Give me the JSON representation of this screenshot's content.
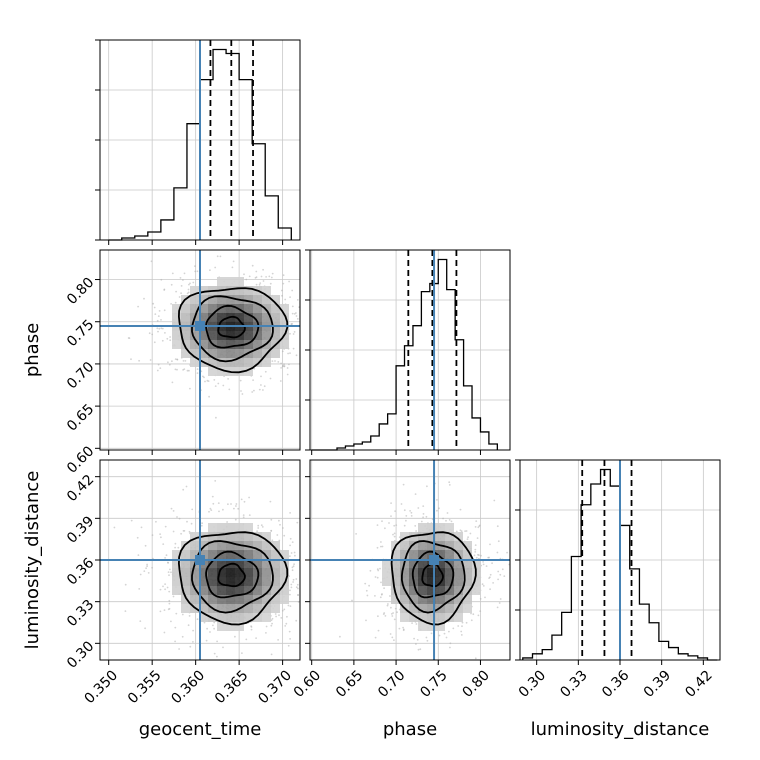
{
  "chart_data": {
    "type": "corner",
    "title": "",
    "parameters": [
      "geocent_time",
      "phase",
      "luminosity_distance"
    ],
    "truths": {
      "geocent_time": 0.3605,
      "phase": 0.745,
      "luminosity_distance": 0.36
    },
    "truth_color": "#4682b4",
    "grid": true,
    "axes": {
      "geocent_time": {
        "label": "geocent_time",
        "range": [
          0.349,
          0.372
        ],
        "ticks": [
          0.35,
          0.355,
          0.36,
          0.365,
          0.37
        ],
        "tick_labels": [
          "0.350",
          "0.355",
          "0.360",
          "0.365",
          "0.370"
        ],
        "quantiles": [
          0.3617,
          0.3641,
          0.3666
        ],
        "hist_bins": [
          0.35,
          0.3515,
          0.353,
          0.3545,
          0.356,
          0.3575,
          0.359,
          0.3605,
          0.362,
          0.3635,
          0.365,
          0.3665,
          0.368,
          0.3695,
          0.371
        ],
        "hist_counts": [
          0,
          1,
          2,
          4,
          10,
          26,
          58,
          80,
          95,
          93,
          80,
          48,
          22,
          6
        ]
      },
      "phase": {
        "label": "phase",
        "range": [
          0.598,
          0.835
        ],
        "ticks": [
          0.6,
          0.65,
          0.7,
          0.75,
          0.8
        ],
        "tick_labels": [
          "0.60",
          "0.65",
          "0.70",
          "0.75",
          "0.80"
        ],
        "quantiles": [
          0.7145,
          0.743,
          0.7715
        ],
        "hist_bins": [
          0.6,
          0.61,
          0.62,
          0.63,
          0.64,
          0.65,
          0.66,
          0.67,
          0.68,
          0.69,
          0.7,
          0.71,
          0.72,
          0.73,
          0.74,
          0.75,
          0.76,
          0.77,
          0.78,
          0.79,
          0.8,
          0.81,
          0.82
        ],
        "hist_counts": [
          0,
          0,
          0,
          1,
          2,
          3,
          4,
          7,
          13,
          18,
          42,
          52,
          62,
          79,
          83,
          95,
          80,
          55,
          32,
          16,
          9,
          3
        ]
      },
      "luminosity_distance": {
        "label": "luminosity_distance",
        "range": [
          0.288,
          0.432
        ],
        "ticks": [
          0.3,
          0.33,
          0.36,
          0.39,
          0.42
        ],
        "tick_labels": [
          "0.30",
          "0.33",
          "0.36",
          "0.39",
          "0.42"
        ],
        "quantiles": [
          0.3328,
          0.3488,
          0.3683
        ],
        "hist_bins": [
          0.29,
          0.297,
          0.304,
          0.311,
          0.318,
          0.325,
          0.332,
          0.339,
          0.346,
          0.353,
          0.36,
          0.367,
          0.374,
          0.381,
          0.388,
          0.395,
          0.402,
          0.409,
          0.416,
          0.423,
          0.43
        ],
        "hist_counts": [
          1,
          3,
          5,
          12,
          23,
          50,
          75,
          85,
          92,
          84,
          65,
          44,
          27,
          18,
          9,
          6,
          3,
          2,
          1,
          0
        ]
      }
    },
    "pair_stats": [
      {
        "x": "geocent_time",
        "y": "phase",
        "mean": [
          0.3641,
          0.743
        ],
        "sd": [
          0.003,
          0.024
        ],
        "corr": -0.05
      },
      {
        "x": "geocent_time",
        "y": "luminosity_distance",
        "mean": [
          0.3641,
          0.3488
        ],
        "sd": [
          0.003,
          0.016
        ],
        "corr": 0.03
      },
      {
        "x": "phase",
        "y": "luminosity_distance",
        "mean": [
          0.743,
          0.3488
        ],
        "sd": [
          0.024,
          0.016
        ],
        "corr": 0.02
      }
    ]
  }
}
